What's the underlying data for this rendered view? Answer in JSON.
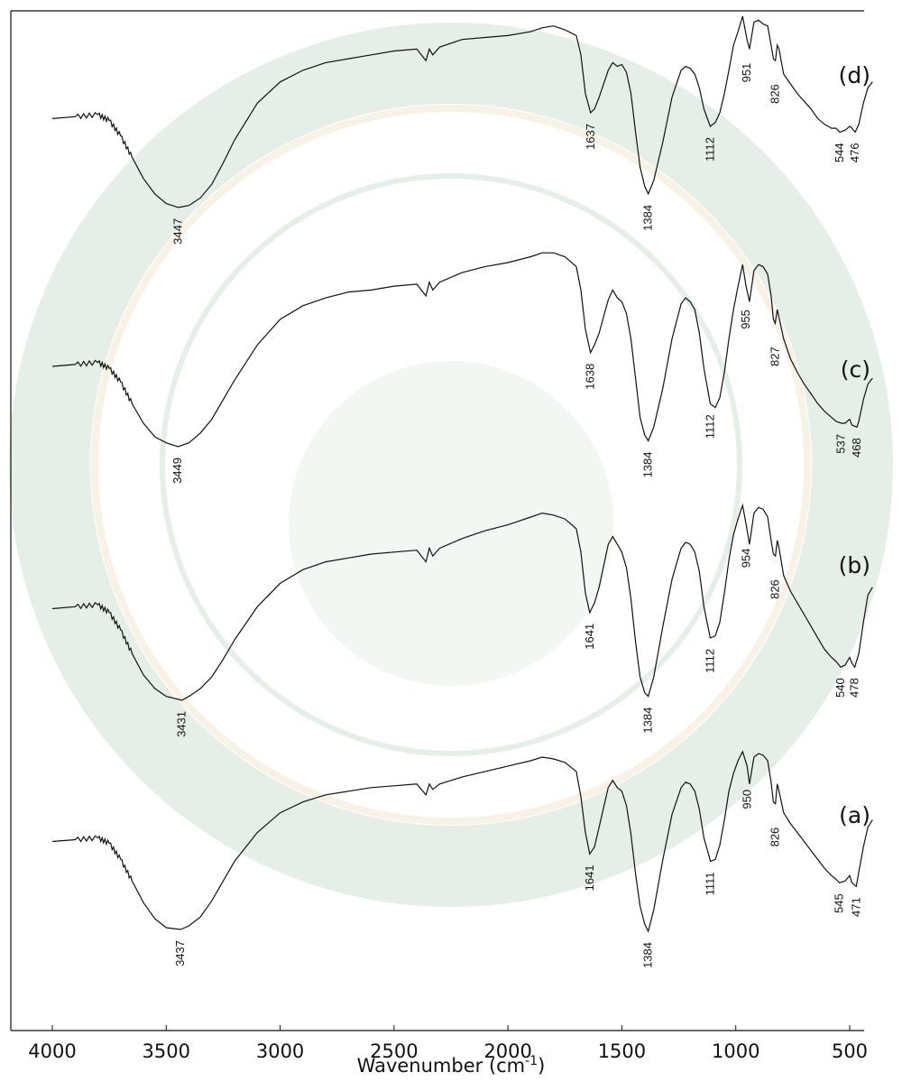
{
  "chart_data": {
    "type": "line",
    "xlabel": "Wavenumber (cm",
    "xlabel_sup": "-1",
    "xlabel_close": ")",
    "xlim": [
      4000,
      400
    ],
    "x_reversed": true,
    "xticks": [
      4000,
      3500,
      3000,
      2500,
      2000,
      1500,
      1000,
      500
    ],
    "y_axis_shown": false,
    "grid": false,
    "series": [
      {
        "name": "(d)",
        "peaks": [
          3447,
          1637,
          1384,
          1112,
          951,
          826,
          544,
          476
        ],
        "x": [
          4000,
          3900,
          3800,
          3750,
          3700,
          3650,
          3600,
          3550,
          3500,
          3447,
          3400,
          3350,
          3300,
          3250,
          3200,
          3100,
          3000,
          2900,
          2800,
          2700,
          2600,
          2500,
          2400,
          2360,
          2345,
          2330,
          2300,
          2200,
          2100,
          2000,
          1900,
          1850,
          1800,
          1750,
          1700,
          1680,
          1660,
          1637,
          1620,
          1600,
          1560,
          1540,
          1520,
          1500,
          1480,
          1460,
          1440,
          1420,
          1400,
          1384,
          1360,
          1320,
          1280,
          1240,
          1220,
          1200,
          1180,
          1160,
          1140,
          1112,
          1090,
          1070,
          1050,
          1030,
          1010,
          990,
          970,
          951,
          940,
          920,
          900,
          880,
          860,
          845,
          835,
          826,
          818,
          810,
          790,
          760,
          730,
          700,
          670,
          640,
          610,
          580,
          560,
          544,
          520,
          500,
          490,
          476,
          460,
          440,
          420,
          400
        ],
        "y": [
          0.47,
          0.48,
          0.49,
          0.46,
          0.38,
          0.27,
          0.16,
          0.08,
          0.03,
          0.01,
          0.02,
          0.06,
          0.13,
          0.24,
          0.36,
          0.55,
          0.66,
          0.72,
          0.76,
          0.78,
          0.8,
          0.82,
          0.83,
          0.77,
          0.83,
          0.8,
          0.84,
          0.88,
          0.89,
          0.9,
          0.92,
          0.94,
          0.95,
          0.93,
          0.9,
          0.8,
          0.6,
          0.5,
          0.52,
          0.58,
          0.72,
          0.76,
          0.74,
          0.75,
          0.71,
          0.6,
          0.4,
          0.22,
          0.12,
          0.08,
          0.15,
          0.35,
          0.58,
          0.72,
          0.74,
          0.73,
          0.7,
          0.63,
          0.52,
          0.43,
          0.45,
          0.5,
          0.6,
          0.72,
          0.85,
          0.92,
          1.0,
          0.88,
          0.83,
          0.97,
          0.98,
          0.96,
          0.95,
          0.85,
          0.78,
          0.77,
          0.85,
          0.83,
          0.7,
          0.65,
          0.6,
          0.56,
          0.52,
          0.47,
          0.44,
          0.42,
          0.42,
          0.4,
          0.41,
          0.43,
          0.42,
          0.4,
          0.44,
          0.55,
          0.63,
          0.66
        ]
      },
      {
        "name": "(c)",
        "peaks": [
          3449,
          1638,
          1384,
          1112,
          955,
          827,
          537,
          468
        ],
        "x": [
          4000,
          3900,
          3800,
          3750,
          3700,
          3650,
          3600,
          3550,
          3500,
          3449,
          3400,
          3350,
          3300,
          3250,
          3200,
          3100,
          3000,
          2900,
          2800,
          2700,
          2600,
          2500,
          2400,
          2360,
          2345,
          2330,
          2300,
          2200,
          2100,
          2000,
          1900,
          1850,
          1800,
          1750,
          1700,
          1680,
          1660,
          1638,
          1620,
          1600,
          1560,
          1540,
          1520,
          1500,
          1480,
          1460,
          1440,
          1420,
          1400,
          1384,
          1360,
          1320,
          1280,
          1240,
          1220,
          1200,
          1180,
          1160,
          1140,
          1112,
          1090,
          1070,
          1050,
          1030,
          1010,
          990,
          970,
          955,
          940,
          920,
          900,
          880,
          860,
          845,
          835,
          827,
          818,
          810,
          790,
          760,
          730,
          700,
          670,
          640,
          610,
          580,
          560,
          537,
          520,
          500,
          490,
          468,
          460,
          440,
          420,
          400
        ],
        "y": [
          0.41,
          0.42,
          0.43,
          0.4,
          0.33,
          0.22,
          0.12,
          0.05,
          0.02,
          0.0,
          0.02,
          0.07,
          0.14,
          0.24,
          0.34,
          0.52,
          0.65,
          0.72,
          0.76,
          0.79,
          0.8,
          0.82,
          0.83,
          0.77,
          0.84,
          0.8,
          0.84,
          0.89,
          0.92,
          0.94,
          0.97,
          0.99,
          0.99,
          0.97,
          0.92,
          0.8,
          0.6,
          0.48,
          0.52,
          0.58,
          0.75,
          0.8,
          0.76,
          0.74,
          0.68,
          0.55,
          0.35,
          0.15,
          0.06,
          0.03,
          0.1,
          0.3,
          0.55,
          0.73,
          0.76,
          0.74,
          0.7,
          0.58,
          0.4,
          0.22,
          0.2,
          0.25,
          0.38,
          0.55,
          0.7,
          0.82,
          0.93,
          0.82,
          0.74,
          0.9,
          0.93,
          0.92,
          0.88,
          0.77,
          0.65,
          0.63,
          0.7,
          0.66,
          0.55,
          0.45,
          0.38,
          0.32,
          0.27,
          0.22,
          0.18,
          0.15,
          0.13,
          0.12,
          0.12,
          0.14,
          0.11,
          0.1,
          0.13,
          0.24,
          0.32,
          0.35
        ]
      },
      {
        "name": "(b)",
        "peaks": [
          3431,
          1641,
          1384,
          1112,
          954,
          826,
          540,
          478
        ],
        "x": [
          4000,
          3900,
          3800,
          3750,
          3700,
          3650,
          3600,
          3550,
          3500,
          3431,
          3400,
          3350,
          3300,
          3250,
          3200,
          3100,
          3000,
          2900,
          2800,
          2700,
          2600,
          2500,
          2400,
          2360,
          2345,
          2330,
          2300,
          2200,
          2100,
          2000,
          1900,
          1850,
          1800,
          1750,
          1700,
          1680,
          1660,
          1641,
          1620,
          1600,
          1560,
          1540,
          1520,
          1500,
          1480,
          1460,
          1440,
          1420,
          1400,
          1384,
          1360,
          1320,
          1280,
          1240,
          1220,
          1200,
          1180,
          1160,
          1140,
          1112,
          1090,
          1070,
          1050,
          1030,
          1010,
          990,
          970,
          954,
          940,
          920,
          900,
          880,
          860,
          845,
          835,
          826,
          818,
          810,
          790,
          760,
          730,
          700,
          670,
          640,
          610,
          580,
          560,
          540,
          520,
          500,
          490,
          478,
          460,
          440,
          420,
          400
        ],
        "y": [
          0.47,
          0.48,
          0.49,
          0.45,
          0.36,
          0.24,
          0.13,
          0.06,
          0.02,
          0.0,
          0.02,
          0.06,
          0.12,
          0.21,
          0.31,
          0.48,
          0.6,
          0.67,
          0.71,
          0.73,
          0.75,
          0.76,
          0.77,
          0.71,
          0.78,
          0.74,
          0.78,
          0.83,
          0.87,
          0.9,
          0.94,
          0.96,
          0.95,
          0.93,
          0.88,
          0.76,
          0.55,
          0.45,
          0.5,
          0.58,
          0.8,
          0.84,
          0.8,
          0.76,
          0.68,
          0.52,
          0.3,
          0.12,
          0.04,
          0.02,
          0.12,
          0.38,
          0.62,
          0.78,
          0.81,
          0.8,
          0.76,
          0.66,
          0.48,
          0.32,
          0.33,
          0.4,
          0.55,
          0.72,
          0.85,
          0.93,
          1.0,
          0.9,
          0.8,
          0.96,
          0.99,
          0.98,
          0.94,
          0.82,
          0.75,
          0.74,
          0.82,
          0.78,
          0.64,
          0.56,
          0.5,
          0.44,
          0.38,
          0.32,
          0.26,
          0.22,
          0.2,
          0.17,
          0.18,
          0.22,
          0.19,
          0.17,
          0.24,
          0.4,
          0.54,
          0.58
        ]
      },
      {
        "name": "(a)",
        "peaks": [
          3437,
          1641,
          1384,
          1111,
          950,
          826,
          545,
          471
        ],
        "x": [
          4000,
          3900,
          3800,
          3750,
          3700,
          3650,
          3600,
          3550,
          3500,
          3437,
          3400,
          3350,
          3300,
          3250,
          3200,
          3100,
          3000,
          2900,
          2800,
          2700,
          2600,
          2500,
          2400,
          2360,
          2345,
          2330,
          2300,
          2200,
          2100,
          2000,
          1900,
          1850,
          1800,
          1750,
          1700,
          1680,
          1660,
          1641,
          1620,
          1600,
          1560,
          1540,
          1520,
          1500,
          1480,
          1460,
          1440,
          1420,
          1400,
          1384,
          1360,
          1320,
          1280,
          1240,
          1220,
          1200,
          1180,
          1160,
          1140,
          1111,
          1090,
          1070,
          1050,
          1030,
          1010,
          990,
          970,
          950,
          940,
          920,
          900,
          880,
          860,
          845,
          835,
          826,
          818,
          810,
          790,
          760,
          730,
          700,
          670,
          640,
          610,
          580,
          560,
          545,
          520,
          500,
          490,
          471,
          460,
          440,
          420,
          400
        ],
        "y": [
          0.5,
          0.51,
          0.52,
          0.49,
          0.4,
          0.28,
          0.16,
          0.07,
          0.02,
          0.01,
          0.03,
          0.08,
          0.17,
          0.28,
          0.39,
          0.55,
          0.66,
          0.72,
          0.76,
          0.78,
          0.8,
          0.81,
          0.82,
          0.76,
          0.82,
          0.79,
          0.82,
          0.86,
          0.89,
          0.92,
          0.95,
          0.97,
          0.96,
          0.94,
          0.89,
          0.75,
          0.55,
          0.43,
          0.47,
          0.58,
          0.8,
          0.84,
          0.8,
          0.78,
          0.7,
          0.54,
          0.32,
          0.14,
          0.04,
          0.0,
          0.12,
          0.4,
          0.65,
          0.8,
          0.83,
          0.82,
          0.78,
          0.68,
          0.52,
          0.39,
          0.4,
          0.48,
          0.62,
          0.78,
          0.88,
          0.95,
          1.0,
          0.92,
          0.82,
          0.97,
          0.99,
          0.98,
          0.95,
          0.83,
          0.72,
          0.71,
          0.82,
          0.78,
          0.66,
          0.6,
          0.55,
          0.5,
          0.45,
          0.4,
          0.35,
          0.31,
          0.29,
          0.27,
          0.28,
          0.31,
          0.27,
          0.25,
          0.33,
          0.47,
          0.58,
          0.62
        ]
      }
    ]
  }
}
